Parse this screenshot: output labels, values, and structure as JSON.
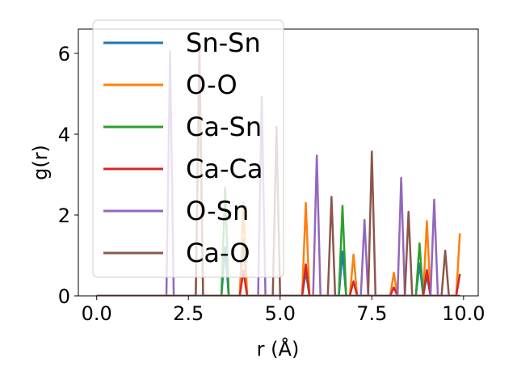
{
  "chart_data": {
    "type": "line",
    "xlabel": "r (Å)",
    "ylabel": "g(r)",
    "xlim": [
      -0.5,
      10.4
    ],
    "ylim": [
      0,
      6.6
    ],
    "xticks": [
      {
        "value": 0.0,
        "label": "0.0"
      },
      {
        "value": 2.5,
        "label": "2.5"
      },
      {
        "value": 5.0,
        "label": "5.0"
      },
      {
        "value": 7.5,
        "label": "7.5"
      },
      {
        "value": 10.0,
        "label": "10.0"
      }
    ],
    "yticks": [
      {
        "value": 0,
        "label": "0"
      },
      {
        "value": 2,
        "label": "2"
      },
      {
        "value": 4,
        "label": "4"
      },
      {
        "value": 6,
        "label": "6"
      }
    ],
    "grid": false,
    "legend_position": "upper-left",
    "x": [
      0.0,
      0.1,
      0.2,
      0.3,
      0.4,
      0.5,
      0.6,
      0.7,
      0.8,
      0.9,
      1.0,
      1.1,
      1.2,
      1.3,
      1.4,
      1.5,
      1.6,
      1.7,
      1.8,
      1.9,
      2.0,
      2.1,
      2.2,
      2.3,
      2.4,
      2.5,
      2.6,
      2.7,
      2.8,
      2.9,
      3.0,
      3.1,
      3.2,
      3.3,
      3.4,
      3.5,
      3.6,
      3.7,
      3.8,
      3.9,
      4.0,
      4.1,
      4.2,
      4.3,
      4.4,
      4.5,
      4.6,
      4.7,
      4.8,
      4.9,
      5.0,
      5.1,
      5.2,
      5.3,
      5.4,
      5.5,
      5.6,
      5.7,
      5.8,
      5.9,
      6.0,
      6.1,
      6.2,
      6.3,
      6.4,
      6.5,
      6.6,
      6.7,
      6.8,
      6.9,
      7.0,
      7.1,
      7.2,
      7.3,
      7.4,
      7.5,
      7.6,
      7.7,
      7.8,
      7.9,
      8.0,
      8.1,
      8.2,
      8.3,
      8.4,
      8.5,
      8.6,
      8.7,
      8.8,
      8.9,
      9.0,
      9.1,
      9.2,
      9.3,
      9.4,
      9.5,
      9.6,
      9.7,
      9.8,
      9.9
    ],
    "series": [
      {
        "name": "Sn-Sn",
        "color": "#1f77b4",
        "peaks": [
          [
            3.5,
            1.2
          ],
          [
            4.0,
            1.4
          ],
          [
            5.7,
            0.6
          ],
          [
            6.7,
            1.1
          ],
          [
            8.8,
            0.8
          ],
          [
            9.0,
            0.5
          ]
        ]
      },
      {
        "name": "O-O",
        "color": "#ff7f0e",
        "peaks": [
          [
            2.8,
            5.5
          ],
          [
            4.0,
            2.3
          ],
          [
            5.7,
            2.3
          ],
          [
            7.0,
            1.02
          ],
          [
            8.1,
            0.57
          ],
          [
            9.0,
            1.85
          ],
          [
            9.9,
            1.55
          ]
        ]
      },
      {
        "name": "Ca-Sn",
        "color": "#2ca02c",
        "peaks": [
          [
            3.5,
            2.68
          ],
          [
            6.7,
            2.23
          ],
          [
            8.8,
            1.3
          ]
        ]
      },
      {
        "name": "Ca-Ca",
        "color": "#d62728",
        "peaks": [
          [
            4.0,
            0.62
          ],
          [
            5.7,
            0.78
          ],
          [
            7.0,
            0.36
          ],
          [
            8.1,
            0.21
          ],
          [
            9.0,
            0.64
          ],
          [
            9.9,
            0.54
          ]
        ]
      },
      {
        "name": "O-Sn",
        "color": "#9467bd",
        "peaks": [
          [
            2.0,
            6.05
          ],
          [
            4.5,
            4.92
          ],
          [
            6.0,
            3.47
          ],
          [
            7.3,
            1.88
          ],
          [
            8.3,
            2.92
          ],
          [
            9.2,
            2.38
          ]
        ]
      },
      {
        "name": "Ca-O",
        "color": "#8c564b",
        "peaks": [
          [
            2.8,
            6.2
          ],
          [
            4.9,
            4.18
          ],
          [
            6.4,
            2.45
          ],
          [
            7.5,
            3.57
          ],
          [
            8.5,
            2.08
          ],
          [
            9.5,
            1.12
          ]
        ]
      }
    ]
  }
}
